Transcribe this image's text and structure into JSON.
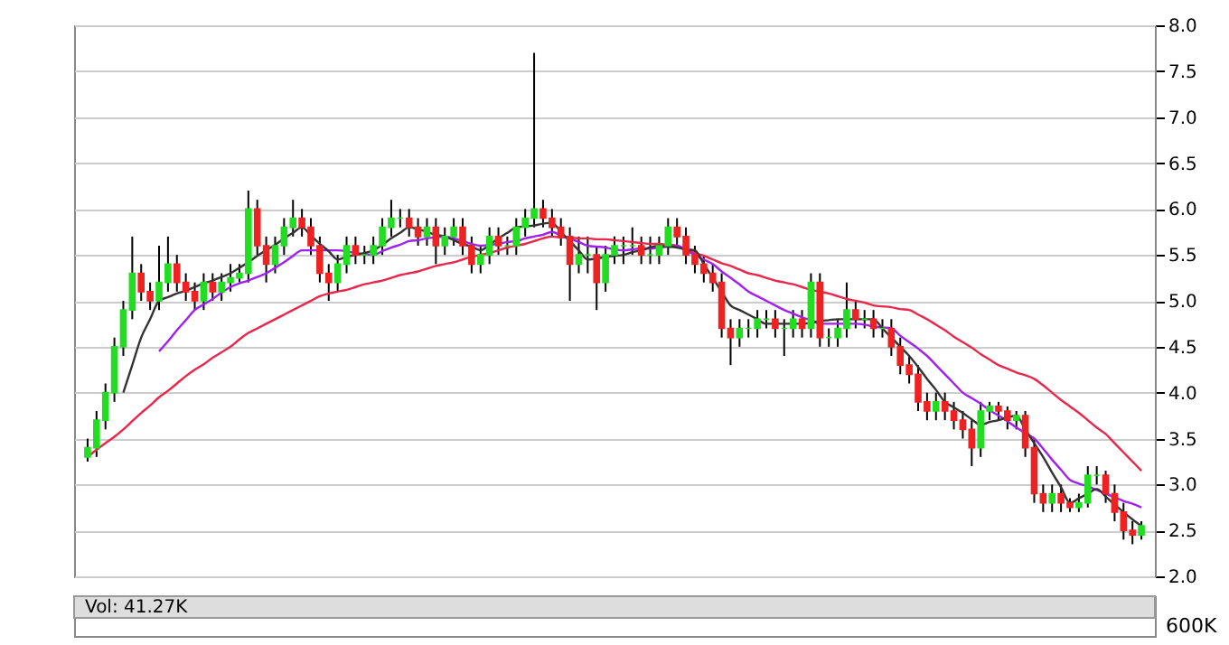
{
  "chart_data": [
    {
      "type": "candlestick",
      "categories": [
        null,
        null,
        null,
        null,
        null,
        null,
        null,
        null,
        null,
        null,
        null,
        null,
        null,
        null,
        null,
        null,
        null,
        null,
        null,
        null,
        null,
        null,
        null,
        null,
        null,
        null,
        null,
        null,
        null,
        null,
        null,
        null,
        null,
        null,
        null,
        null,
        null,
        null,
        null,
        null,
        null,
        null,
        null,
        null,
        null,
        null,
        null,
        null,
        null,
        null,
        null,
        null,
        null,
        null,
        null,
        null,
        null,
        null,
        null,
        null,
        null,
        null,
        null,
        null,
        null,
        null,
        null,
        null,
        null,
        null,
        null,
        null,
        null,
        null,
        null,
        null,
        null,
        null,
        null,
        null,
        null,
        null,
        null,
        null,
        null,
        null,
        null,
        null,
        null,
        null,
        null,
        null,
        null,
        null,
        null,
        null,
        null,
        null,
        null,
        null,
        null,
        null,
        null,
        null,
        null,
        null,
        null,
        null,
        null,
        null,
        null,
        null,
        null,
        null,
        null,
        null,
        null,
        null,
        null
      ],
      "ohlc": [
        [
          3.3,
          3.5,
          3.25,
          3.4
        ],
        [
          3.4,
          3.8,
          3.3,
          3.7
        ],
        [
          3.7,
          4.1,
          3.6,
          4.0
        ],
        [
          4.0,
          4.6,
          3.9,
          4.5
        ],
        [
          4.5,
          5.0,
          4.4,
          4.9
        ],
        [
          4.9,
          5.7,
          4.8,
          5.3
        ],
        [
          5.3,
          5.4,
          5.0,
          5.1
        ],
        [
          5.1,
          5.2,
          4.9,
          5.0
        ],
        [
          5.0,
          5.6,
          4.9,
          5.2
        ],
        [
          5.2,
          5.7,
          5.1,
          5.4
        ],
        [
          5.4,
          5.5,
          5.1,
          5.2
        ],
        [
          5.2,
          5.3,
          5.0,
          5.1
        ],
        [
          5.1,
          5.2,
          4.9,
          5.0
        ],
        [
          5.0,
          5.3,
          4.9,
          5.2
        ],
        [
          5.2,
          5.3,
          5.0,
          5.1
        ],
        [
          5.1,
          5.3,
          5.0,
          5.2
        ],
        [
          5.2,
          5.4,
          5.1,
          5.25
        ],
        [
          5.25,
          5.4,
          5.2,
          5.3
        ],
        [
          5.3,
          6.2,
          5.2,
          6.0
        ],
        [
          6.0,
          6.1,
          5.5,
          5.6
        ],
        [
          5.6,
          5.7,
          5.2,
          5.4
        ],
        [
          5.4,
          5.7,
          5.3,
          5.6
        ],
        [
          5.6,
          5.9,
          5.5,
          5.8
        ],
        [
          5.8,
          6.1,
          5.7,
          5.9
        ],
        [
          5.9,
          6.0,
          5.7,
          5.8
        ],
        [
          5.8,
          5.9,
          5.5,
          5.6
        ],
        [
          5.6,
          5.7,
          5.2,
          5.3
        ],
        [
          5.3,
          5.4,
          5.0,
          5.2
        ],
        [
          5.2,
          5.5,
          5.1,
          5.4
        ],
        [
          5.4,
          5.7,
          5.3,
          5.6
        ],
        [
          5.6,
          5.7,
          5.4,
          5.5
        ],
        [
          5.5,
          5.6,
          5.4,
          5.5
        ],
        [
          5.5,
          5.7,
          5.4,
          5.6
        ],
        [
          5.6,
          5.9,
          5.5,
          5.8
        ],
        [
          5.8,
          6.1,
          5.7,
          5.9
        ],
        [
          5.9,
          6.0,
          5.8,
          5.9
        ],
        [
          5.9,
          6.0,
          5.7,
          5.8
        ],
        [
          5.8,
          5.9,
          5.6,
          5.7
        ],
        [
          5.7,
          5.9,
          5.6,
          5.8
        ],
        [
          5.8,
          5.9,
          5.4,
          5.6
        ],
        [
          5.6,
          5.8,
          5.5,
          5.7
        ],
        [
          5.7,
          5.9,
          5.6,
          5.8
        ],
        [
          5.8,
          5.9,
          5.5,
          5.6
        ],
        [
          5.6,
          5.7,
          5.3,
          5.4
        ],
        [
          5.4,
          5.6,
          5.3,
          5.5
        ],
        [
          5.5,
          5.8,
          5.4,
          5.7
        ],
        [
          5.7,
          5.8,
          5.5,
          5.6
        ],
        [
          5.6,
          5.7,
          5.5,
          5.6
        ],
        [
          5.6,
          5.9,
          5.5,
          5.8
        ],
        [
          5.8,
          6.0,
          5.7,
          5.9
        ],
        [
          5.9,
          7.7,
          5.8,
          6.0
        ],
        [
          6.0,
          6.1,
          5.8,
          5.9
        ],
        [
          5.9,
          6.0,
          5.7,
          5.8
        ],
        [
          5.8,
          5.9,
          5.6,
          5.7
        ],
        [
          5.7,
          5.8,
          5.0,
          5.4
        ],
        [
          5.4,
          5.7,
          5.3,
          5.5
        ],
        [
          5.5,
          5.7,
          5.3,
          5.5
        ],
        [
          5.5,
          5.6,
          4.9,
          5.2
        ],
        [
          5.2,
          5.6,
          5.1,
          5.5
        ],
        [
          5.5,
          5.7,
          5.4,
          5.6
        ],
        [
          5.6,
          5.7,
          5.4,
          5.6
        ],
        [
          5.6,
          5.8,
          5.5,
          5.6
        ],
        [
          5.6,
          5.7,
          5.4,
          5.5
        ],
        [
          5.5,
          5.7,
          5.4,
          5.5
        ],
        [
          5.5,
          5.7,
          5.4,
          5.6
        ],
        [
          5.6,
          5.9,
          5.5,
          5.8
        ],
        [
          5.8,
          5.9,
          5.6,
          5.7
        ],
        [
          5.7,
          5.8,
          5.4,
          5.5
        ],
        [
          5.5,
          5.6,
          5.3,
          5.4
        ],
        [
          5.4,
          5.5,
          5.2,
          5.3
        ],
        [
          5.3,
          5.4,
          5.1,
          5.2
        ],
        [
          5.2,
          5.3,
          4.6,
          4.7
        ],
        [
          4.7,
          4.8,
          4.3,
          4.6
        ],
        [
          4.6,
          4.8,
          4.5,
          4.7
        ],
        [
          4.7,
          4.8,
          4.6,
          4.7
        ],
        [
          4.7,
          4.9,
          4.6,
          4.8
        ],
        [
          4.8,
          4.9,
          4.7,
          4.8
        ],
        [
          4.8,
          4.9,
          4.6,
          4.7
        ],
        [
          4.7,
          4.8,
          4.4,
          4.7
        ],
        [
          4.7,
          4.9,
          4.6,
          4.8
        ],
        [
          4.8,
          4.9,
          4.6,
          4.7
        ],
        [
          4.7,
          5.3,
          4.6,
          5.2
        ],
        [
          5.2,
          5.3,
          4.5,
          4.6
        ],
        [
          4.6,
          4.7,
          4.5,
          4.6
        ],
        [
          4.6,
          4.8,
          4.5,
          4.7
        ],
        [
          4.7,
          5.2,
          4.6,
          4.9
        ],
        [
          4.9,
          5.0,
          4.7,
          4.8
        ],
        [
          4.8,
          4.9,
          4.7,
          4.8
        ],
        [
          4.8,
          4.9,
          4.6,
          4.7
        ],
        [
          4.7,
          4.8,
          4.6,
          4.7
        ],
        [
          4.7,
          4.8,
          4.4,
          4.5
        ],
        [
          4.5,
          4.6,
          4.2,
          4.3
        ],
        [
          4.3,
          4.4,
          4.1,
          4.2
        ],
        [
          4.2,
          4.3,
          3.8,
          3.9
        ],
        [
          3.9,
          4.0,
          3.7,
          3.8
        ],
        [
          3.8,
          4.0,
          3.7,
          3.9
        ],
        [
          3.9,
          4.0,
          3.7,
          3.8
        ],
        [
          3.8,
          3.9,
          3.6,
          3.7
        ],
        [
          3.7,
          3.8,
          3.5,
          3.6
        ],
        [
          3.6,
          3.7,
          3.2,
          3.4
        ],
        [
          3.4,
          3.9,
          3.3,
          3.8
        ],
        [
          3.8,
          3.9,
          3.7,
          3.85
        ],
        [
          3.85,
          3.9,
          3.7,
          3.8
        ],
        [
          3.8,
          3.85,
          3.6,
          3.7
        ],
        [
          3.7,
          3.8,
          3.6,
          3.75
        ],
        [
          3.75,
          3.8,
          3.3,
          3.4
        ],
        [
          3.4,
          3.5,
          2.8,
          2.9
        ],
        [
          2.9,
          3.0,
          2.7,
          2.8
        ],
        [
          2.8,
          3.0,
          2.7,
          2.9
        ],
        [
          2.9,
          3.0,
          2.7,
          2.8
        ],
        [
          2.8,
          2.85,
          2.7,
          2.75
        ],
        [
          2.75,
          2.9,
          2.7,
          2.8
        ],
        [
          2.8,
          3.2,
          2.75,
          3.1
        ],
        [
          3.1,
          3.2,
          3.0,
          3.1
        ],
        [
          3.1,
          3.15,
          2.8,
          2.9
        ],
        [
          2.9,
          3.0,
          2.6,
          2.7
        ],
        [
          2.7,
          2.8,
          2.4,
          2.5
        ],
        [
          2.5,
          2.6,
          2.35,
          2.45
        ],
        [
          2.45,
          2.6,
          2.4,
          2.55
        ]
      ],
      "colors": [
        "#22dd22",
        "#22dd22",
        "#22dd22",
        "#22dd22",
        "#22dd22",
        "#22dd22",
        "#ee2222",
        "#ee2222",
        "#22dd22",
        "#22dd22",
        "#ee2222",
        "#ee2222",
        "#ee2222",
        "#22dd22",
        "#ee2222",
        "#22dd22",
        "#22dd22",
        "#22dd22",
        "#22dd22",
        "#ee2222",
        "#ee2222",
        "#22dd22",
        "#22dd22",
        "#22dd22",
        "#ee2222",
        "#ee2222",
        "#ee2222",
        "#ee2222",
        "#22dd22",
        "#22dd22",
        "#ee2222",
        "#22dd22",
        "#22dd22",
        "#22dd22",
        "#22dd22",
        "#22dd22",
        "#ee2222",
        "#ee2222",
        "#22dd22",
        "#ee2222",
        "#22dd22",
        "#22dd22",
        "#ee2222",
        "#ee2222",
        "#22dd22",
        "#22dd22",
        "#ee2222",
        "#22dd22",
        "#22dd22",
        "#22dd22",
        "#22dd22",
        "#ee2222",
        "#ee2222",
        "#ee2222",
        "#ee2222",
        "#22dd22",
        "#22dd22",
        "#ee2222",
        "#22dd22",
        "#22dd22",
        "#22dd22",
        "#22dd22",
        "#ee2222",
        "#22dd22",
        "#22dd22",
        "#22dd22",
        "#ee2222",
        "#ee2222",
        "#ee2222",
        "#ee2222",
        "#ee2222",
        "#ee2222",
        "#ee2222",
        "#22dd22",
        "#22dd22",
        "#22dd22",
        "#22dd22",
        "#ee2222",
        "#22dd22",
        "#22dd22",
        "#ee2222",
        "#22dd22",
        "#ee2222",
        "#22dd22",
        "#22dd22",
        "#22dd22",
        "#ee2222",
        "#22dd22",
        "#ee2222",
        "#22dd22",
        "#ee2222",
        "#ee2222",
        "#ee2222",
        "#ee2222",
        "#ee2222",
        "#22dd22",
        "#ee2222",
        "#ee2222",
        "#ee2222",
        "#ee2222",
        "#22dd22",
        "#22dd22",
        "#ee2222",
        "#ee2222",
        "#22dd22",
        "#ee2222",
        "#ee2222",
        "#ee2222",
        "#22dd22",
        "#ee2222",
        "#ee2222",
        "#22dd22",
        "#22dd22",
        "#22dd22",
        "#ee2222",
        "#ee2222",
        "#ee2222",
        "#ee2222",
        "#22dd22"
      ],
      "series": [
        {
          "type": "line",
          "color": "#e8274a",
          "values": [
            3.3,
            3.38,
            3.45,
            3.52,
            3.6,
            3.69,
            3.78,
            3.86,
            3.95,
            4.02,
            4.1,
            4.18,
            4.25,
            4.31,
            4.38,
            4.44,
            4.5,
            4.58,
            4.65,
            4.7,
            4.75,
            4.8,
            4.85,
            4.9,
            4.95,
            5.0,
            5.05,
            5.08,
            5.1,
            5.12,
            5.15,
            5.18,
            5.2,
            5.22,
            5.25,
            5.28,
            5.3,
            5.32,
            5.35,
            5.38,
            5.4,
            5.42,
            5.45,
            5.48,
            5.5,
            5.52,
            5.55,
            5.58,
            5.6,
            5.62,
            5.65,
            5.68,
            5.7,
            5.69,
            5.69,
            5.68,
            5.68,
            5.67,
            5.67,
            5.66,
            5.65,
            5.64,
            5.63,
            5.62,
            5.62,
            5.61,
            5.6,
            5.56,
            5.52,
            5.49,
            5.45,
            5.41,
            5.38,
            5.34,
            5.3,
            5.28,
            5.25,
            5.22,
            5.2,
            5.18,
            5.15,
            5.12,
            5.1,
            5.08,
            5.05,
            5.02,
            5.0,
            4.98,
            4.95,
            4.94,
            4.93,
            4.91,
            4.9,
            4.85,
            4.8,
            4.74,
            4.68,
            4.61,
            4.55,
            4.49,
            4.42,
            4.36,
            4.3,
            4.26,
            4.22,
            4.19,
            4.15,
            4.08,
            4.0,
            3.92,
            3.85,
            3.78,
            3.7,
            3.62,
            3.55,
            3.45,
            3.35,
            3.25,
            3.15
          ]
        },
        {
          "type": "line",
          "color": "#a020f0",
          "values": [
            null,
            null,
            null,
            null,
            null,
            null,
            null,
            null,
            4.45,
            4.56,
            4.68,
            4.79,
            4.9,
            4.96,
            5.02,
            5.09,
            5.15,
            5.19,
            5.22,
            5.26,
            5.3,
            5.36,
            5.42,
            5.49,
            5.55,
            5.55,
            5.55,
            5.55,
            5.55,
            5.54,
            5.52,
            5.51,
            5.5,
            5.54,
            5.58,
            5.61,
            5.65,
            5.66,
            5.68,
            5.69,
            5.7,
            5.68,
            5.65,
            5.62,
            5.6,
            5.61,
            5.62,
            5.64,
            5.65,
            5.68,
            5.7,
            5.72,
            5.75,
            5.71,
            5.68,
            5.64,
            5.6,
            5.59,
            5.58,
            5.56,
            5.55,
            5.56,
            5.57,
            5.57,
            5.58,
            5.59,
            5.6,
            5.55,
            5.5,
            5.45,
            5.4,
            5.32,
            5.25,
            5.18,
            5.1,
            5.05,
            5.0,
            4.95,
            4.9,
            4.86,
            4.82,
            4.79,
            4.75,
            4.75,
            4.75,
            4.75,
            4.75,
            4.74,
            4.72,
            4.71,
            4.7,
            4.62,
            4.55,
            4.48,
            4.4,
            4.3,
            4.2,
            4.1,
            4.0,
            3.94,
            3.88,
            3.81,
            3.75,
            3.69,
            3.62,
            3.56,
            3.5,
            3.39,
            3.27,
            3.16,
            3.05,
            3.01,
            2.98,
            2.94,
            2.9,
            2.86,
            2.82,
            2.79,
            2.75
          ]
        },
        {
          "type": "line",
          "color": "#333333",
          "values": [
            null,
            null,
            null,
            null,
            4.0,
            4.3,
            4.6,
            4.8,
            5.0,
            5.04,
            5.08,
            5.11,
            5.15,
            5.19,
            5.22,
            5.26,
            5.3,
            5.36,
            5.42,
            5.49,
            5.55,
            5.61,
            5.68,
            5.74,
            5.8,
            5.71,
            5.62,
            5.54,
            5.45,
            5.48,
            5.5,
            5.52,
            5.55,
            5.61,
            5.68,
            5.74,
            5.8,
            5.78,
            5.75,
            5.72,
            5.7,
            5.66,
            5.62,
            5.59,
            5.55,
            5.61,
            5.68,
            5.74,
            5.8,
            5.81,
            5.82,
            5.84,
            5.85,
            5.75,
            5.65,
            5.55,
            5.45,
            5.46,
            5.48,
            5.49,
            5.5,
            5.53,
            5.55,
            5.58,
            5.6,
            5.59,
            5.58,
            5.56,
            5.55,
            5.4,
            5.25,
            5.1,
            4.95,
            4.9,
            4.85,
            4.8,
            4.75,
            4.75,
            4.75,
            4.75,
            4.75,
            4.76,
            4.78,
            4.79,
            4.8,
            4.8,
            4.8,
            4.8,
            4.8,
            4.7,
            4.6,
            4.5,
            4.4,
            4.28,
            4.15,
            4.03,
            3.9,
            3.84,
            3.78,
            3.71,
            3.65,
            3.68,
            3.7,
            3.73,
            3.75,
            3.6,
            3.45,
            3.3,
            3.13,
            2.97,
            2.8,
            2.85,
            2.9,
            2.95,
            2.87,
            2.78,
            2.7,
            2.62,
            2.55
          ]
        }
      ],
      "ylim": [
        2.0,
        8.0
      ],
      "yticks": [
        {
          "value": 2.0,
          "label": "2.0"
        },
        {
          "value": 2.5,
          "label": "2.5"
        },
        {
          "value": 3.0,
          "label": "3.0"
        },
        {
          "value": 3.5,
          "label": "3.5"
        },
        {
          "value": 4.0,
          "label": "4.0"
        },
        {
          "value": 4.5,
          "label": "4.5"
        },
        {
          "value": 5.0,
          "label": "5.0"
        },
        {
          "value": 5.5,
          "label": "5.5"
        },
        {
          "value": 6.0,
          "label": "6.0"
        },
        {
          "value": 6.5,
          "label": "6.5"
        },
        {
          "value": 7.0,
          "label": "7.0"
        },
        {
          "value": 7.5,
          "label": "7.5"
        },
        {
          "value": 8.0,
          "label": "8.0"
        }
      ],
      "grid": "y"
    },
    {
      "type": "other",
      "annotations": [
        "Vol: 41.27K",
        "600K"
      ]
    }
  ]
}
